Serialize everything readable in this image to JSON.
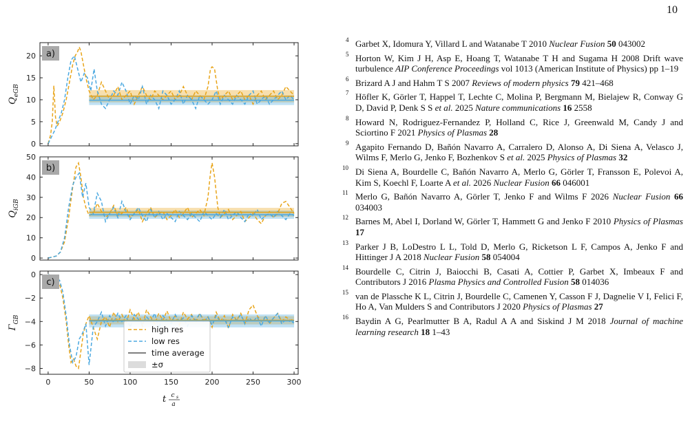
{
  "page_number": "10",
  "chart_data": [
    {
      "type": "line",
      "panel_label": "a)",
      "ylabel": "Q_e,GB",
      "ylim": [
        -0.5,
        23
      ],
      "yticks": [
        0,
        5,
        10,
        15,
        20
      ],
      "xlim": [
        -10,
        305
      ],
      "xticks": [
        0,
        50,
        100,
        150,
        200,
        250,
        300
      ],
      "series": [
        {
          "name": "high res",
          "color": "#e8a418",
          "style": "dashed",
          "x": [
            0,
            3,
            5,
            7,
            9,
            11,
            14,
            18,
            22,
            26,
            30,
            33,
            36,
            38,
            40,
            43,
            46,
            50,
            55,
            60,
            65,
            70,
            75,
            80,
            85,
            90,
            95,
            100,
            105,
            110,
            115,
            120,
            125,
            130,
            135,
            140,
            145,
            150,
            155,
            160,
            165,
            170,
            175,
            180,
            185,
            190,
            195,
            198,
            200,
            203,
            207,
            210,
            215,
            220,
            225,
            230,
            235,
            240,
            245,
            250,
            255,
            260,
            265,
            270,
            275,
            280,
            285,
            290,
            295,
            300
          ],
          "y": [
            0,
            2,
            5,
            13.2,
            6,
            4,
            5,
            7,
            10,
            14,
            18,
            20,
            21,
            22,
            21,
            18,
            15,
            12,
            10,
            11,
            14,
            12,
            10,
            11,
            13,
            10,
            11,
            12,
            9,
            11,
            13,
            11,
            10,
            12,
            11,
            10,
            11,
            12,
            10,
            11,
            13,
            11,
            10,
            12,
            11,
            10,
            13,
            17,
            17.5,
            17,
            12,
            10,
            11,
            12,
            10,
            11,
            12,
            10,
            11,
            9,
            11,
            12,
            10,
            11,
            12,
            10,
            11,
            13,
            12,
            11
          ]
        },
        {
          "name": "low res",
          "color": "#4aa8e0",
          "style": "dashed",
          "x": [
            0,
            4,
            8,
            12,
            16,
            20,
            24,
            28,
            32,
            36,
            40,
            44,
            48,
            52,
            56,
            60,
            65,
            70,
            75,
            80,
            85,
            90,
            95,
            100,
            105,
            110,
            115,
            120,
            125,
            130,
            135,
            140,
            145,
            150,
            155,
            160,
            165,
            170,
            175,
            180,
            185,
            190,
            195,
            200,
            205,
            210,
            215,
            220,
            225,
            230,
            235,
            240,
            245,
            250,
            255,
            260,
            265,
            270,
            275,
            280,
            285,
            290,
            295,
            300
          ],
          "y": [
            0,
            1.5,
            3,
            5,
            7,
            10,
            15,
            19,
            20,
            17,
            14,
            16,
            15,
            12,
            17,
            12,
            9,
            8,
            10,
            12,
            11,
            14,
            12,
            9,
            11,
            10,
            13,
            9,
            11,
            10,
            8,
            12,
            11,
            9,
            10,
            12,
            9,
            11,
            10,
            8,
            11,
            10,
            9,
            10,
            12,
            9,
            11,
            10,
            9,
            11,
            10,
            9,
            11,
            12,
            9,
            10,
            11,
            9,
            10,
            11,
            12,
            10,
            11,
            10
          ]
        }
      ],
      "averages": [
        {
          "series": "high res",
          "mean": 10.8,
          "sigma": 1.4,
          "color": "#e8a418"
        },
        {
          "series": "low res",
          "mean": 9.9,
          "sigma": 1.1,
          "color": "#4aa8e0"
        }
      ]
    },
    {
      "type": "line",
      "panel_label": "b)",
      "ylabel": "Q_i,GB",
      "ylim": [
        -1,
        50
      ],
      "yticks": [
        0,
        10,
        20,
        30,
        40,
        50
      ],
      "xlim": [
        -10,
        305
      ],
      "xticks": [
        0,
        50,
        100,
        150,
        200,
        250,
        300
      ],
      "series": [
        {
          "name": "high res",
          "color": "#e8a418",
          "style": "dashed",
          "x": [
            0,
            5,
            10,
            15,
            20,
            25,
            30,
            34,
            37,
            40,
            43,
            46,
            50,
            55,
            60,
            65,
            70,
            75,
            80,
            85,
            90,
            95,
            100,
            105,
            110,
            115,
            120,
            125,
            130,
            135,
            140,
            145,
            150,
            155,
            160,
            165,
            170,
            175,
            180,
            185,
            190,
            195,
            198,
            200,
            203,
            207,
            210,
            215,
            220,
            225,
            230,
            235,
            240,
            245,
            250,
            255,
            260,
            265,
            270,
            275,
            280,
            285,
            290,
            295,
            300
          ],
          "y": [
            0,
            0.5,
            1,
            3,
            8,
            20,
            35,
            45,
            47,
            40,
            30,
            25,
            21,
            22,
            27,
            23,
            20,
            22,
            26,
            21,
            22,
            25,
            20,
            22,
            24,
            18,
            22,
            25,
            20,
            22,
            23,
            19,
            21,
            24,
            20,
            22,
            25,
            20,
            22,
            24,
            21,
            30,
            42,
            47,
            40,
            25,
            20,
            22,
            24,
            19,
            21,
            23,
            18,
            20,
            22,
            19,
            17,
            21,
            23,
            20,
            22,
            27,
            28,
            25,
            22
          ]
        },
        {
          "name": "low res",
          "color": "#4aa8e0",
          "style": "dashed",
          "x": [
            0,
            5,
            10,
            15,
            20,
            25,
            30,
            34,
            38,
            42,
            46,
            50,
            55,
            60,
            65,
            70,
            75,
            80,
            85,
            90,
            95,
            100,
            105,
            110,
            115,
            120,
            125,
            130,
            135,
            140,
            145,
            150,
            155,
            160,
            165,
            170,
            175,
            180,
            185,
            190,
            195,
            200,
            205,
            210,
            215,
            220,
            225,
            230,
            235,
            240,
            245,
            250,
            255,
            260,
            265,
            270,
            275,
            280,
            285,
            290,
            295,
            300
          ],
          "y": [
            0,
            0.5,
            1,
            3,
            10,
            25,
            36,
            40,
            42,
            30,
            37,
            25,
            22,
            32,
            28,
            18,
            22,
            25,
            20,
            28,
            23,
            19,
            22,
            25,
            21,
            18,
            24,
            20,
            23,
            19,
            22,
            20,
            18,
            23,
            21,
            19,
            22,
            20,
            18,
            23,
            21,
            19,
            22,
            20,
            24,
            19,
            21,
            23,
            20,
            18,
            22,
            21,
            24,
            19,
            21,
            22,
            20,
            23,
            21,
            19,
            22,
            21
          ]
        }
      ],
      "averages": [
        {
          "series": "high res",
          "mean": 22.6,
          "sigma": 2.2,
          "color": "#e8a418"
        },
        {
          "series": "low res",
          "mean": 21.4,
          "sigma": 2.0,
          "color": "#4aa8e0"
        }
      ]
    },
    {
      "type": "line",
      "panel_label": "c)",
      "ylabel": "Γ_GB",
      "ylim": [
        -8.5,
        0.3
      ],
      "yticks": [
        -8,
        -6,
        -4,
        -2,
        0
      ],
      "xlim": [
        -10,
        305
      ],
      "xticks": [
        0,
        50,
        100,
        150,
        200,
        250,
        300
      ],
      "xlabel": "t c_s / a",
      "series": [
        {
          "name": "high res",
          "color": "#e8a418",
          "style": "dashed",
          "x": [
            0,
            5,
            10,
            14,
            18,
            22,
            25,
            28,
            31,
            34,
            37,
            40,
            43,
            46,
            50,
            55,
            60,
            65,
            70,
            75,
            80,
            85,
            90,
            95,
            100,
            105,
            110,
            115,
            120,
            125,
            130,
            135,
            140,
            145,
            150,
            155,
            160,
            165,
            170,
            175,
            180,
            185,
            190,
            195,
            200,
            205,
            210,
            215,
            220,
            225,
            230,
            235,
            240,
            245,
            250,
            255,
            260,
            265,
            270,
            275,
            280,
            285,
            290,
            295,
            300
          ],
          "y": [
            0,
            -0.1,
            -0.3,
            -0.8,
            -2,
            -4,
            -6,
            -7.5,
            -7.2,
            -7.8,
            -8,
            -6.5,
            -5,
            -4.2,
            -3.5,
            -4.5,
            -5.5,
            -4,
            -3.6,
            -4.5,
            -3.2,
            -4,
            -3.4,
            -4.2,
            -3,
            -3.8,
            -3.2,
            -4.4,
            -3,
            -3.6,
            -4.2,
            -3.3,
            -3.9,
            -3.1,
            -4,
            -3.5,
            -4.3,
            -3.2,
            -3.8,
            -3.4,
            -4.1,
            -3.3,
            -3.9,
            -3.6,
            -4.5,
            -3.2,
            -4,
            -3.5,
            -4.6,
            -3.4,
            -3.9,
            -3.3,
            -4.2,
            -3,
            -2.6,
            -3.5,
            -4,
            -3.6,
            -4.2,
            -3.7,
            -3.3,
            -4,
            -3.6,
            -3.9,
            -3.8
          ]
        },
        {
          "name": "low res",
          "color": "#4aa8e0",
          "style": "dashed",
          "x": [
            0,
            5,
            10,
            14,
            18,
            22,
            26,
            30,
            34,
            38,
            42,
            46,
            50,
            55,
            60,
            65,
            70,
            75,
            80,
            85,
            90,
            95,
            100,
            105,
            110,
            115,
            120,
            125,
            130,
            135,
            140,
            145,
            150,
            155,
            160,
            165,
            170,
            175,
            180,
            185,
            190,
            195,
            200,
            205,
            210,
            215,
            220,
            225,
            230,
            235,
            240,
            245,
            250,
            255,
            260,
            265,
            270,
            275,
            280,
            285,
            290,
            295,
            300
          ],
          "y": [
            0,
            -0.1,
            -0.2,
            -0.5,
            -1.5,
            -3.5,
            -6,
            -7.5,
            -7,
            -5.5,
            -5,
            -4.2,
            -7.7,
            -4.5,
            -4,
            -3.2,
            -4.4,
            -3.5,
            -4.1,
            -3.3,
            -4,
            -3.5,
            -4.5,
            -3.4,
            -3.8,
            -4.2,
            -3.6,
            -4,
            -3.3,
            -4.6,
            -3.5,
            -3.9,
            -4.2,
            -3.4,
            -4,
            -3.7,
            -4.4,
            -3.5,
            -3.9,
            -3.3,
            -4.1,
            -3.6,
            -4.3,
            -3.5,
            -4,
            -3.8,
            -4.5,
            -3.6,
            -3.9,
            -3.4,
            -4.2,
            -3.7,
            -4,
            -3.6,
            -4.4,
            -3.5,
            -4.1,
            -3.7,
            -3.3,
            -4.2,
            -3.8,
            -4,
            -4.1
          ]
        }
      ],
      "averages": [
        {
          "series": "high res",
          "mean": -3.9,
          "sigma": 0.35,
          "color": "#e8a418"
        },
        {
          "series": "low res",
          "mean": -3.95,
          "sigma": 0.55,
          "color": "#4aa8e0"
        }
      ],
      "legend": {
        "placement": "lower-center",
        "entries": [
          {
            "label": "high res",
            "kind": "dashed",
            "color": "#e8a418"
          },
          {
            "label": "low res",
            "kind": "dashed",
            "color": "#4aa8e0"
          },
          {
            "label": "time average",
            "kind": "solid",
            "color": "#555555"
          },
          {
            "label": "±σ",
            "kind": "patch",
            "color": "#dcdcdc"
          }
        ]
      }
    }
  ],
  "average_window_start": 50,
  "references": [
    {
      "num": "4",
      "html": "Garbet X, Idomura Y, Villard L and Watanabe T 2010 <i>Nuclear Fusion</i> <b>50</b> 043002"
    },
    {
      "num": "5",
      "html": "Horton W, Kim J H, Asp E, Hoang T, Watanabe T H and Sugama H 2008 Drift wave turbulence <i>AIP Conference Proceedings</i> vol 1013 (American Institute of Physics) pp 1–19"
    },
    {
      "num": "6",
      "html": "Brizard A J and Hahm T S 2007 <i>Reviews of modern physics</i> <b>79</b> 421–468"
    },
    {
      "num": "7",
      "html": "Höfler K, Görler T, Happel T, Lechte C, Molina P, Bergmann M, Bielajew R, Conway G D, David P, Denk S S <i>et al.</i> 2025 <i>Nature communications</i> <b>16</b> 2558"
    },
    {
      "num": "8",
      "html": "Howard N, Rodriguez-Fernandez P, Holland C, Rice J, Greenwald M, Candy J and Sciortino F 2021 <i>Physics of Plasmas</i> <b>28</b>"
    },
    {
      "num": "9",
      "html": "Agapito Fernando D, Bañón Navarro A, Carralero D, Alonso A, Di Siena A, Velasco J, Wilms F, Merlo G, Jenko F, Bozhenkov S <i>et al.</i> 2025 <i>Physics of Plasmas</i> <b>32</b>"
    },
    {
      "num": "10",
      "html": "Di Siena A, Bourdelle C, Bañón Navarro A, Merlo G, Görler T, Fransson E, Polevoi A, Kim S, Koechl F, Loarte A <i>et al.</i> 2026 <i>Nuclear Fusion</i> <b>66</b> 046001"
    },
    {
      "num": "11",
      "html": "Merlo G, Bañón Navarro A, Görler T, Jenko F and Wilms F 2026 <i>Nuclear Fusion</i> <b>66</b> 034003"
    },
    {
      "num": "12",
      "html": "Barnes M, Abel I, Dorland W, Görler T, Hammett G and Jenko F 2010 <i>Physics of Plasmas</i> <b>17</b>"
    },
    {
      "num": "13",
      "html": "Parker J B, LoDestro L L, Told D, Merlo G, Ricketson L F, Campos A, Jenko F and Hittinger J A 2018 <i>Nuclear Fusion</i> <b>58</b> 054004"
    },
    {
      "num": "14",
      "html": "Bourdelle C, Citrin J, Baiocchi B, Casati A, Cottier P, Garbet X, Imbeaux F and Contributors J 2016 <i>Plasma Physics and Controlled Fusion</i> <b>58</b> 014036"
    },
    {
      "num": "15",
      "html": "van de Plassche K L, Citrin J, Bourdelle C, Camenen Y, Casson F J, Dagnelie V I, Felici F, Ho A, Van Mulders S and Contributors J 2020 <i>Physics of Plasmas</i> <b>27</b>"
    },
    {
      "num": "16",
      "html": "Baydin A G, Pearlmutter B A, Radul A A and Siskind J M 2018 <i>Journal of machine learning research</i> <b>18</b> 1–43"
    }
  ]
}
